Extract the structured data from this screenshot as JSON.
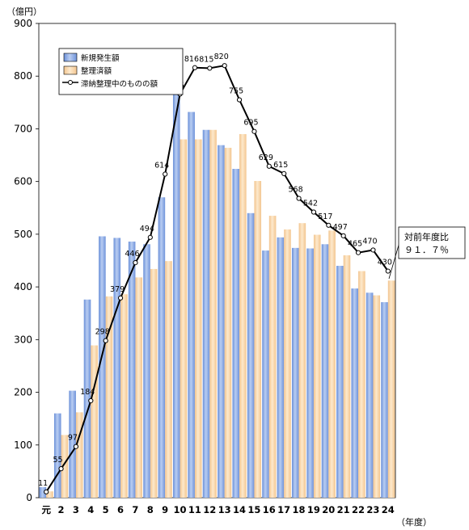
{
  "chart_data": {
    "type": "bar",
    "unit_label": "（億円）",
    "x_unit_label": "（年度）",
    "categories": [
      "元",
      "2",
      "3",
      "4",
      "5",
      "6",
      "7",
      "8",
      "9",
      "10",
      "11",
      "12",
      "13",
      "14",
      "15",
      "16",
      "17",
      "18",
      "19",
      "20",
      "21",
      "22",
      "23",
      "24"
    ],
    "ylim": [
      0,
      900
    ],
    "yticks": [
      0,
      100,
      200,
      300,
      400,
      500,
      600,
      700,
      800,
      900
    ],
    "grid": false,
    "legend_position": "top-left",
    "series": [
      {
        "name": "新規発生額",
        "kind": "bar",
        "color": "#8fb0e6",
        "values": [
          20,
          160,
          203,
          376,
          496,
          493,
          486,
          481,
          570,
          832,
          732,
          698,
          669,
          624,
          540,
          469,
          494,
          474,
          473,
          481,
          440,
          397,
          389,
          371
        ]
      },
      {
        "name": "整理済額",
        "kind": "bar",
        "color": "#fad9ae",
        "values": [
          12,
          119,
          162,
          289,
          382,
          386,
          418,
          434,
          449,
          680,
          680,
          698,
          664,
          690,
          601,
          535,
          509,
          521,
          499,
          507,
          460,
          430,
          384,
          412
        ]
      },
      {
        "name": "滞納整理中のものの額",
        "kind": "line",
        "color": "#000000",
        "values": [
          11,
          55,
          97,
          184,
          298,
          379,
          446,
          494,
          614,
          766,
          816,
          815,
          820,
          755,
          695,
          629,
          615,
          568,
          542,
          517,
          497,
          465,
          470,
          430
        ]
      }
    ],
    "annotation": {
      "line1": "対前年度比",
      "line2": "９１．７％"
    }
  }
}
